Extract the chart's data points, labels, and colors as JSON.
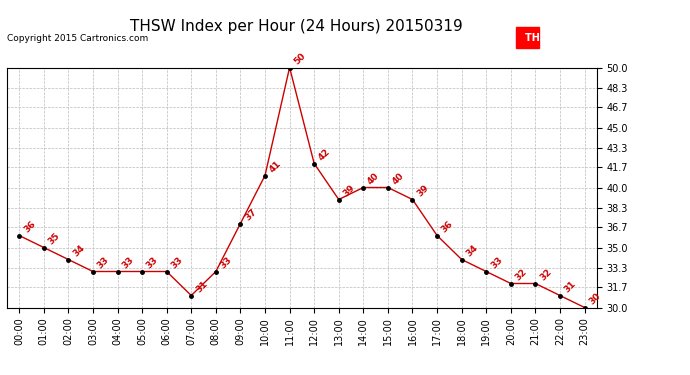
{
  "title": "THSW Index per Hour (24 Hours) 20150319",
  "copyright": "Copyright 2015 Cartronics.com",
  "legend_label": "THSW  (°F)",
  "hours": [
    "00:00",
    "01:00",
    "02:00",
    "03:00",
    "04:00",
    "05:00",
    "06:00",
    "07:00",
    "08:00",
    "09:00",
    "10:00",
    "11:00",
    "12:00",
    "13:00",
    "14:00",
    "15:00",
    "16:00",
    "17:00",
    "18:00",
    "19:00",
    "20:00",
    "21:00",
    "22:00",
    "23:00"
  ],
  "values": [
    36,
    35,
    34,
    33,
    33,
    33,
    33,
    31,
    33,
    37,
    41,
    50,
    42,
    39,
    40,
    40,
    39,
    36,
    34,
    33,
    32,
    32,
    31,
    30
  ],
  "ylim_min": 30.0,
  "ylim_max": 50.0,
  "yticks": [
    30.0,
    31.7,
    33.3,
    35.0,
    36.7,
    38.3,
    40.0,
    41.7,
    43.3,
    45.0,
    46.7,
    48.3,
    50.0
  ],
  "ytick_labels": [
    "30.0",
    "31.7",
    "33.3",
    "35.0",
    "36.7",
    "38.3",
    "40.0",
    "41.7",
    "43.3",
    "45.0",
    "46.7",
    "48.3",
    "50.0"
  ],
  "line_color": "#cc0000",
  "marker_color": "#000000",
  "grid_color": "#bbbbbb",
  "background_color": "#ffffff",
  "label_color": "#cc0000",
  "title_fontsize": 11,
  "axis_fontsize": 7,
  "annotation_fontsize": 6.5
}
